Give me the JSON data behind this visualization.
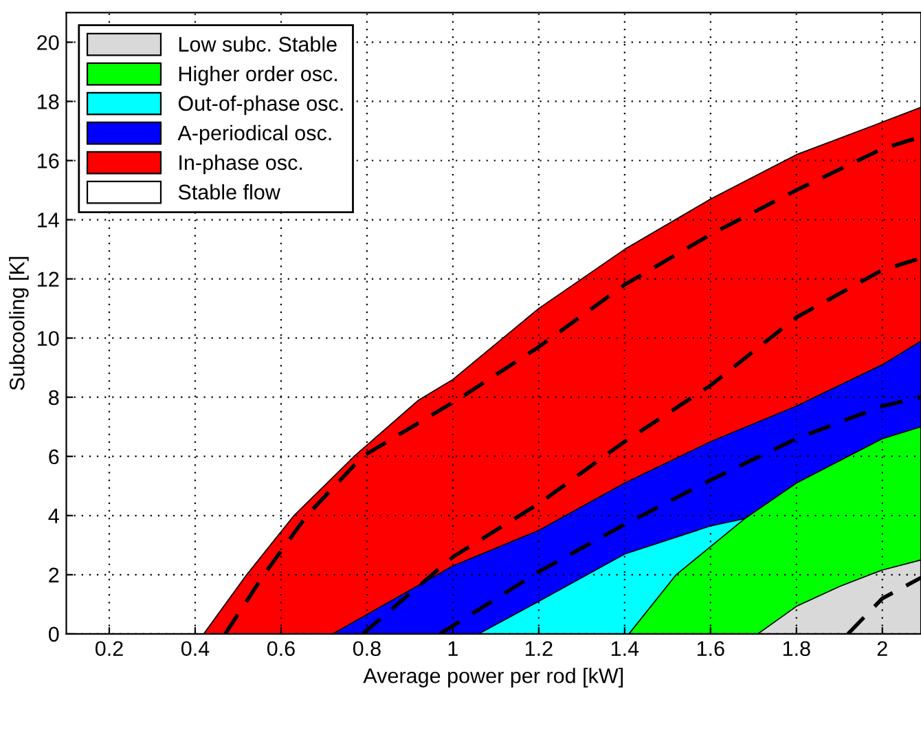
{
  "chart_data": {
    "type": "area",
    "xlabel": "Average power per rod [kW]",
    "ylabel": "Subcooling [K]",
    "xlim": [
      0.1,
      2.09
    ],
    "ylim": [
      0,
      21
    ],
    "xticks": [
      0.2,
      0.4,
      0.6,
      0.8,
      1,
      1.2,
      1.4,
      1.6,
      1.8,
      2
    ],
    "yticks": [
      0,
      2,
      4,
      6,
      8,
      10,
      12,
      14,
      16,
      18,
      20
    ],
    "grid": true,
    "legend": "top left",
    "series": [
      {
        "name": "In-phase osc.",
        "color": "#ff0000",
        "x": [
          0.42,
          0.52,
          0.63,
          0.77,
          0.92,
          1.0,
          1.2,
          1.4,
          1.6,
          1.8,
          2.0,
          2.09
        ],
        "values": [
          0,
          2,
          4,
          6,
          7.9,
          8.6,
          11.0,
          13.0,
          14.7,
          16.2,
          17.3,
          17.8
        ]
      },
      {
        "name": "A-periodical osc.",
        "color": "#0000ff",
        "x": [
          0.72,
          1.0,
          1.2,
          1.4,
          1.6,
          1.8,
          2.0,
          2.09
        ],
        "values": [
          0,
          2.3,
          3.5,
          5.1,
          6.5,
          7.7,
          9.1,
          9.9
        ]
      },
      {
        "name": "Out-of-phase osc.",
        "color": "#00ffff",
        "x": [
          1.06,
          1.2,
          1.4,
          1.6,
          1.68
        ],
        "values": [
          0,
          1.1,
          2.7,
          3.65,
          3.9
        ]
      },
      {
        "name": "Higher order osc.",
        "color": "#00ff00",
        "x": [
          1.41,
          1.52,
          1.68,
          1.8,
          2.0,
          2.09
        ],
        "values": [
          0,
          2.0,
          3.9,
          5.1,
          6.6,
          7.0
        ]
      },
      {
        "name": "Low subc. Stable",
        "color": "#d9d9d9",
        "x": [
          1.71,
          1.8,
          1.9,
          2.0,
          2.09
        ],
        "values": [
          0,
          0.93,
          1.6,
          2.16,
          2.5
        ]
      },
      {
        "type": "line",
        "line_style": "dashed",
        "color": "#000000",
        "x": [
          0.47,
          0.56,
          0.66,
          0.79,
          1.02,
          1.2,
          1.4,
          1.6,
          1.8,
          2.0,
          2.09
        ],
        "values": [
          0,
          2,
          4,
          6,
          8,
          9.7,
          11.8,
          13.5,
          15.0,
          16.4,
          16.8
        ]
      },
      {
        "type": "line",
        "line_style": "dashed",
        "color": "#000000",
        "x": [
          0.79,
          1.0,
          1.2,
          1.4,
          1.6,
          1.8,
          2.0,
          2.09
        ],
        "values": [
          0,
          2.6,
          4.4,
          6.5,
          8.4,
          10.7,
          12.3,
          12.7
        ]
      },
      {
        "type": "line",
        "line_style": "dashed",
        "color": "#000000",
        "x": [
          0.97,
          1.2,
          1.4,
          1.6,
          1.8,
          2.0,
          2.09
        ],
        "values": [
          0,
          2.1,
          3.7,
          5.2,
          6.6,
          7.7,
          8.0
        ]
      },
      {
        "type": "line",
        "line_style": "dashed",
        "color": "#000000",
        "x": [
          1.92,
          2.0,
          2.09
        ],
        "values": [
          0,
          1.2,
          1.9
        ]
      }
    ],
    "annotations": [
      "Stable flow"
    ]
  }
}
